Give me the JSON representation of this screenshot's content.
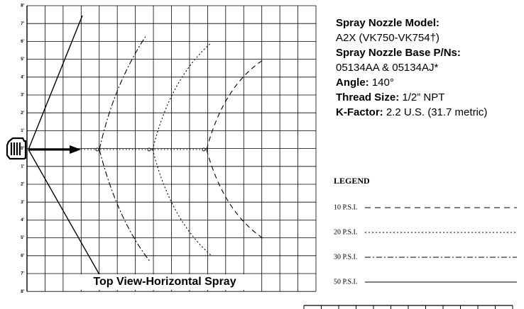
{
  "y_axis_labels": [
    "8'",
    "7'",
    "6'",
    "5'",
    "4'",
    "3'",
    "2'",
    "1'",
    "0'",
    "1'",
    "2'",
    "3'",
    "4'",
    "5'",
    "6'",
    "7'",
    "8'"
  ],
  "caption": "Top View-Horizontal Spray",
  "specs": [
    {
      "label": "Spray Nozzle Model:",
      "value": "A2X (VK750-VK754†)"
    },
    {
      "label": "Spray Nozzle Base P/Ns:",
      "value": "05134AA & 05134AJ*"
    },
    {
      "label": "Angle:",
      "value": "140°"
    },
    {
      "label": "Thread Size:",
      "value": "1/2” NPT"
    },
    {
      "label": "K-Factor:",
      "value": "2.2 U.S. (31.7 metric)"
    }
  ],
  "legend": {
    "title": "LEGEND",
    "items": [
      "10 P.S.I.",
      "20 P.S.I.",
      "30 P.S.I.",
      "50 P.S.I."
    ]
  }
}
